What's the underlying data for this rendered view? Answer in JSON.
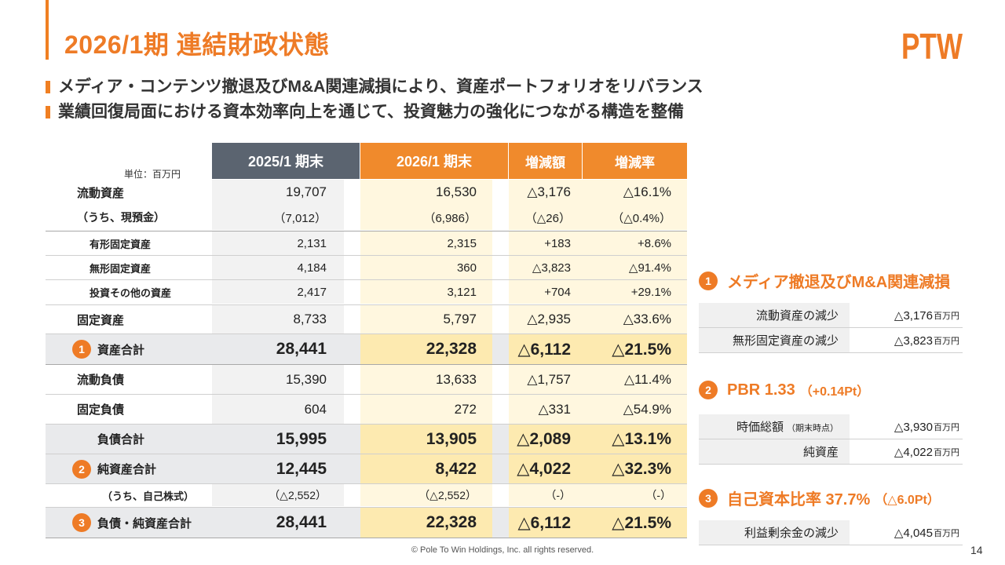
{
  "header": {
    "title": "2026/1期 連結財政状態",
    "logo_text": "PTW",
    "bullets": [
      "メディア・コンテンツ撤退及びM&A関連減損により、資産ポートフォリオをリバランス",
      "業績回復局面における資本効率向上を通じて、投資魅力の強化につながる構造を整備"
    ]
  },
  "table": {
    "unit": "単位：百万円",
    "columns": [
      "2025/1 期末",
      "2026/1 期末",
      "増減額",
      "増減率"
    ],
    "rows": [
      {
        "label": "流動資産",
        "v": [
          "19,707",
          "16,530",
          "△3,176",
          "△16.1%"
        ]
      },
      {
        "label": "（うち、現預金）",
        "v": [
          "（7,012）",
          "（6,986）",
          "（△26）",
          "（△0.4%）"
        ]
      },
      {
        "label": "有形固定資産",
        "v": [
          "2,131",
          "2,315",
          "+183",
          "+8.6%"
        ]
      },
      {
        "label": "無形固定資産",
        "v": [
          "4,184",
          "360",
          "△3,823",
          "△91.4%"
        ]
      },
      {
        "label": "投資その他の資産",
        "v": [
          "2,417",
          "3,121",
          "+704",
          "+29.1%"
        ]
      },
      {
        "label": "固定資産",
        "v": [
          "8,733",
          "5,797",
          "△2,935",
          "△33.6%"
        ]
      },
      {
        "label": "資産合計",
        "marker": "1",
        "v": [
          "28,441",
          "22,328",
          "△6,112",
          "△21.5%"
        ]
      },
      {
        "label": "流動負債",
        "v": [
          "15,390",
          "13,633",
          "△1,757",
          "△11.4%"
        ]
      },
      {
        "label": "固定負債",
        "v": [
          "604",
          "272",
          "△331",
          "△54.9%"
        ]
      },
      {
        "label": "負債合計",
        "v": [
          "15,995",
          "13,905",
          "△2,089",
          "△13.1%"
        ]
      },
      {
        "label": "純資産合計",
        "marker": "2",
        "v": [
          "12,445",
          "8,422",
          "△4,022",
          "△32.3%"
        ]
      },
      {
        "label": "（うち、自己株式）",
        "v": [
          "（△2,552）",
          "（△2,552）",
          "（-）",
          "（-）"
        ]
      },
      {
        "label": "負債・純資産合計",
        "marker": "3",
        "v": [
          "28,441",
          "22,328",
          "△6,112",
          "△21.5%"
        ]
      }
    ]
  },
  "panel": {
    "sections": [
      {
        "num": "1",
        "title": "メディア撤退及びM&A関連減損",
        "title_sub": "",
        "items": [
          {
            "label": "流動資産の減少",
            "label_sub": "",
            "value": "△3,176",
            "unit": "百万円"
          },
          {
            "label": "無形固定資産の減少",
            "label_sub": "",
            "value": "△3,823",
            "unit": "百万円"
          }
        ]
      },
      {
        "num": "2",
        "title": "PBR 1.33",
        "title_sub": "（+0.14Pt）",
        "items": [
          {
            "label": "時価総額",
            "label_sub": "（期末時点）",
            "value": "△3,930",
            "unit": "百万円"
          },
          {
            "label": "純資産",
            "label_sub": "",
            "value": "△4,022",
            "unit": "百万円"
          }
        ]
      },
      {
        "num": "3",
        "title": "自己資本比率 37.7%",
        "title_sub": "（△6.0Pt）",
        "items": [
          {
            "label": "利益剰余金の減少",
            "label_sub": "",
            "value": "△4,045",
            "unit": "百万円"
          }
        ]
      }
    ]
  },
  "footer": {
    "copyright": "© Pole To Win Holdings, Inc. all rights reserved.",
    "page": "14"
  },
  "colors": {
    "accent": "#ee7b26",
    "header_gray": "#5b6470",
    "header_orange": "#f08a2c",
    "highlight": "#fff7df"
  }
}
